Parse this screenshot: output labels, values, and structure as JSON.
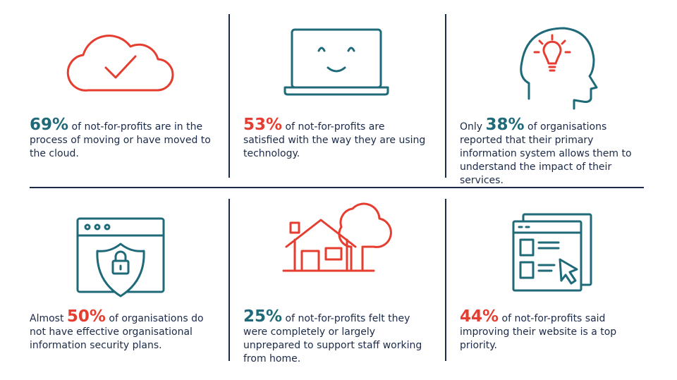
{
  "cells": [
    {
      "stat": "69%",
      "text": "of not-for-profits are in the process of moving or have moved to the cloud."
    },
    {
      "stat": "53%",
      "text": "of not-for-profits are satisfied with the way they are using technology."
    },
    {
      "prefix": "Only",
      "stat": "38%",
      "text": "of organisations reported that their primary information system allows them to understand the impact of their services."
    },
    {
      "prefix": "Almost",
      "stat": "50%",
      "text": "of organisations do not have effective organisational information security plans."
    },
    {
      "stat": "25%",
      "text": "of not-for-profits felt they were completely or largely unprepared to support staff working from home."
    },
    {
      "stat": "44%",
      "text": "of not-for-profits said improving their website is a top priority."
    }
  ]
}
